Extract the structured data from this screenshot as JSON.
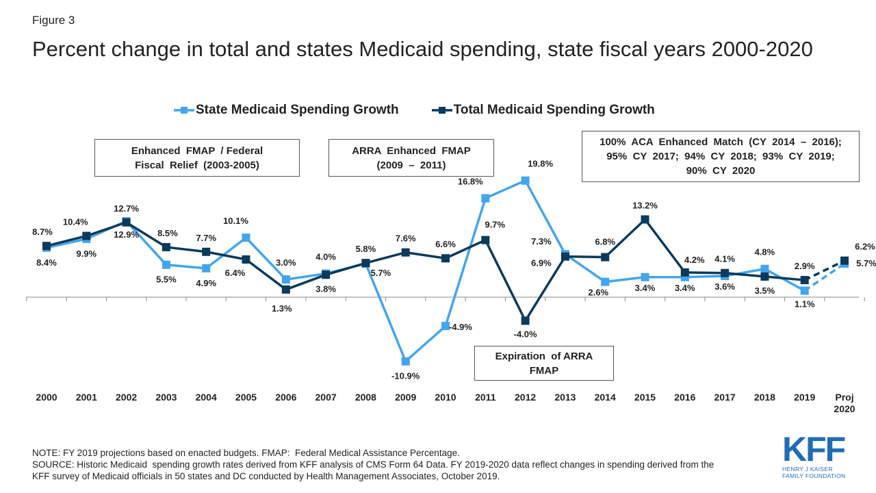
{
  "figure_label": "Figure 3",
  "title": "Percent change in total and states Medicaid spending, state fiscal years 2000-2020",
  "legend": {
    "state": "State Medicaid Spending Growth",
    "total": "Total Medicaid Spending Growth"
  },
  "callouts": {
    "fmap_line1": "Enhanced  FMAP  / Federal",
    "fmap_line2": "Fiscal  Relief  (2003-2005)",
    "arra_line1": "ARRA  Enhanced  FMAP",
    "arra_line2": "(2009  –  2011)",
    "aca_line1": "100%  ACA  Enhanced  Match  (CY  2014  –  2016);",
    "aca_line2": "95%  CY  2017;  94%  CY  2018;  93%  CY  2019;",
    "aca_line3": "90%  CY  2020",
    "exp_line1": "Expiration  of ARRA",
    "exp_line2": "FMAP"
  },
  "notes": {
    "line1": "NOTE: FY 2019 projections based on enacted budgets. FMAP:  Federal Medical Assistance Percentage.",
    "line2": "SOURCE: Historic Medicaid  spending growth rates derived from KFF analysis of CMS Form 64 Data. FY 2019-2020 data reflect changes in spending derived from the",
    "line3": "KFF survey of Medicaid officials in 50 states and DC conducted by Health Management Associates, October 2019."
  },
  "logo": {
    "text": "KFF",
    "sub1": "HENRY J KAISER",
    "sub2": "FAMILY FOUNDATION"
  },
  "chart_data": {
    "type": "line",
    "categories": [
      "2000",
      "2001",
      "2002",
      "2003",
      "2004",
      "2005",
      "2006",
      "2007",
      "2008",
      "2009",
      "2010",
      "2011",
      "2012",
      "2013",
      "2014",
      "2015",
      "2016",
      "2017",
      "2018",
      "2019",
      "Proj 2020"
    ],
    "series": [
      {
        "name": "State Medicaid Spending Growth",
        "color": "#42a5f0",
        "values": [
          8.4,
          9.9,
          12.9,
          5.5,
          4.9,
          10.1,
          3.0,
          4.0,
          5.7,
          -10.9,
          -4.9,
          16.8,
          19.8,
          7.3,
          2.6,
          3.4,
          3.4,
          3.6,
          4.8,
          1.1,
          5.7
        ],
        "labels": [
          "8.4%",
          "9.9%",
          "12.9%",
          "5.5%",
          "4.9%",
          "10.1%",
          "3.0%",
          "4.0%",
          "5.7%",
          "-10.9%",
          "-4.9%",
          "16.8%",
          "19.8%",
          "7.3%",
          "2.6%",
          "3.4%",
          "3.4%",
          "3.6%",
          "4.8%",
          "1.1%",
          "5.7%"
        ],
        "projection_from_index": 19
      },
      {
        "name": "Total Medicaid Spending Growth",
        "color": "#0c3a5c",
        "values": [
          8.7,
          10.4,
          12.7,
          8.5,
          7.7,
          6.4,
          1.3,
          3.8,
          5.8,
          7.6,
          6.6,
          9.7,
          -4.0,
          6.9,
          6.8,
          13.2,
          4.2,
          4.1,
          3.5,
          2.9,
          6.2
        ],
        "labels": [
          "8.7%",
          "10.4%",
          "12.7%",
          "8.5%",
          "7.7%",
          "6.4%",
          "1.3%",
          "3.8%",
          "5.8%",
          "7.6%",
          "6.6%",
          "9.7%",
          "-4.0%",
          "6.9%",
          "6.8%",
          "13.2%",
          "4.2%",
          "4.1%",
          "3.5%",
          "2.9%",
          "6.2%"
        ],
        "projection_from_index": 19
      }
    ],
    "xlabel": "",
    "ylabel": "",
    "ylim": [
      -13,
      21
    ],
    "grid": false,
    "legend_position": "top"
  }
}
